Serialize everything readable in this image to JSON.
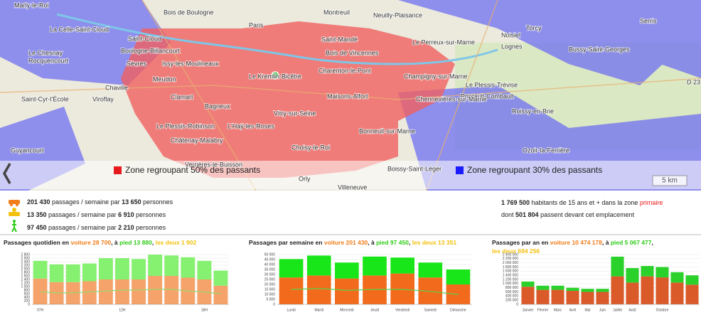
{
  "map": {
    "labels": [
      "Marly-le-Roi",
      "La Celle-Saint-Cloud",
      "Le Chesnay",
      "Rocquencourt",
      "Saint-Cloud",
      "Bois de Boulogne",
      "Boulogne-Billancourt",
      "Paris",
      "Montreuil",
      "Neuilly-Plaisance",
      "Saint-Mandé",
      "Bois de Vincennes",
      "Le Perreux-sur-Marne",
      "Noisiel",
      "Torcy",
      "Sèvres",
      "Issy-les-Moulineaux",
      "Charenton-le-Pont",
      "Lognes",
      "Chaville",
      "Viroflay",
      "Meudon",
      "Le Kremlin-Bicêtre",
      "Champigny-sur-Marne",
      "Bussy-Saint-Georges",
      "Saint-Cyr-l'École",
      "Clamart",
      "Maisons-Alfort",
      "Le Plessis-Trévise",
      "Pontault-Combault",
      "Bagneux",
      "Vitry-sur-Seine",
      "Chennevières-sur-Marne",
      "Roissy-en-Brie",
      "Le Plessis-Robinson",
      "L'Haÿ-les-Roses",
      "Bonneuil-sur-Marne",
      "Serris",
      "Châtenay-Malabry",
      "Choisy-le-Roi",
      "Ozoir-la-Ferrière",
      "Guyancourt",
      "Verrières-le-Buisson",
      "Orly",
      "Boissy-Saint-Léger",
      "Villeneuve",
      "D 23"
    ],
    "legend": [
      "Zone regroupant 50% des passants",
      "Zone regroupant 30% des passants"
    ],
    "legend_colors": [
      "#e8191c",
      "#1a1aff"
    ],
    "scale": "5 km"
  },
  "stats": {
    "rows": [
      {
        "passages": "201 430",
        "middle": " passages / semaine par ",
        "persons": "13 650",
        "end": " personnes"
      },
      {
        "passages": "13 350",
        "middle": " passages / semaine par ",
        "persons": "6 910",
        "end": " personnes"
      },
      {
        "passages": "97 450",
        "middle": " passages / semaine par ",
        "persons": "2 210",
        "end": " personnes"
      }
    ],
    "population": {
      "number": "1 769 500",
      "text": " habitants de 15 ans et + dans la zone ",
      "zone": "primaire"
    },
    "passing": {
      "start": "dont ",
      "number": "501 804",
      "end": " passent devant cet emplacement"
    }
  },
  "chart_data": [
    {
      "type": "bar",
      "stacked": true,
      "title_lines": [
        [
          {
            "text": "Passages quotidien en ",
            "color": "#222"
          },
          {
            "text": "voiture 28 700",
            "color": "#f07d1a"
          },
          {
            "text": ", à ",
            "color": "#222"
          },
          {
            "text": "pied 13 880",
            "color": "#2ecc18"
          },
          {
            "text": ", ",
            "color": "#222"
          },
          {
            "text": "les deux 1 902",
            "color": "#f2c10f"
          }
        ]
      ],
      "categories": [
        "07H",
        null,
        null,
        null,
        null,
        "12H",
        null,
        null,
        null,
        null,
        "18H",
        null
      ],
      "series": [
        {
          "color": "#f5a36a",
          "values": [
            1450,
            1250,
            1250,
            1300,
            1400,
            1400,
            1400,
            1600,
            1600,
            1500,
            1400,
            1050
          ]
        },
        {
          "color": "#86f070",
          "values": [
            1000,
            1000,
            1000,
            1000,
            1200,
            1200,
            1150,
            1200,
            1150,
            1150,
            1050,
            850
          ]
        },
        {
          "type": "line",
          "color": "#9bd86b",
          "values": [
            700,
            650,
            650,
            700,
            750,
            800,
            800,
            850,
            850,
            750,
            700,
            600
          ]
        }
      ],
      "ylim": [
        0,
        2800
      ],
      "yticks": [
        0,
        {
          "value": 200,
          "label": "200"
        },
        400,
        600,
        800,
        {
          "value": 1000,
          "label": "1 000"
        },
        {
          "value": 1200,
          "label": "1 200"
        },
        {
          "value": 1400,
          "label": "1 400"
        },
        {
          "value": 1600,
          "label": "1 600"
        },
        {
          "value": 1800,
          "label": "1 800"
        },
        {
          "value": 2000,
          "label": "2 000"
        },
        {
          "value": 2200,
          "label": "2 200"
        },
        {
          "value": 2400,
          "label": "2 400"
        },
        {
          "value": 2600,
          "label": "2 600"
        },
        {
          "value": 2800,
          "label": "2 800"
        }
      ],
      "grid": true
    },
    {
      "type": "bar",
      "stacked": true,
      "title_lines": [
        [
          {
            "text": "Passages par semaine  en ",
            "color": "#222"
          },
          {
            "text": "voiture 201 430",
            "color": "#f07d1a"
          },
          {
            "text": ", à ",
            "color": "#222"
          },
          {
            "text": "pied 97 450",
            "color": "#2ecc18"
          },
          {
            "text": ", ",
            "color": "#222"
          },
          {
            "text": "les deux 13 351",
            "color": "#f2c10f"
          }
        ]
      ],
      "categories": [
        "Lundi",
        "Mardi",
        "Mercredi",
        "Jeudi",
        "Vendredi",
        "Samedi",
        "Dimanche"
      ],
      "series": [
        {
          "color": "#f26b1d",
          "values": [
            27000,
            29000,
            26000,
            29000,
            31000,
            27000,
            20000
          ]
        },
        {
          "color": "#19e619",
          "values": [
            18500,
            20000,
            16000,
            19000,
            16000,
            15000,
            15000
          ]
        },
        {
          "type": "line",
          "color": "#5ad14a",
          "values": [
            15000,
            16000,
            14000,
            15000,
            15000,
            13000,
            10000
          ]
        }
      ],
      "ylim": [
        0,
        50000
      ],
      "yticks": [
        0,
        {
          "value": 5000,
          "label": "5 000"
        },
        {
          "value": 10000,
          "label": "10 000"
        },
        {
          "value": 15000,
          "label": "15 000"
        },
        {
          "value": 20000,
          "label": "20 000"
        },
        {
          "value": 25000,
          "label": "25 000"
        },
        {
          "value": 30000,
          "label": "30 000"
        },
        {
          "value": 35000,
          "label": "35 000"
        },
        {
          "value": 40000,
          "label": "40 000"
        },
        {
          "value": 45000,
          "label": "45 000"
        },
        {
          "value": 50000,
          "label": "50 000"
        }
      ],
      "grid": true
    },
    {
      "type": "bar",
      "stacked": true,
      "title_lines": [
        [
          {
            "text": "Passages par an  en ",
            "color": "#222"
          },
          {
            "text": "voiture 10 474 178",
            "color": "#f07d1a"
          },
          {
            "text": ", à ",
            "color": "#222"
          },
          {
            "text": "pied 5 067 477",
            "color": "#2ecc18"
          },
          {
            "text": ",",
            "color": "#222"
          }
        ],
        [
          {
            "text": "les deux 694 256",
            "color": "#f2c10f"
          }
        ]
      ],
      "categories": [
        "Janvier",
        "Février",
        "Mars",
        "Avril",
        "Mai",
        "Juin",
        "Juillet",
        "Août",
        null,
        "Octobre",
        null,
        null
      ],
      "series": [
        {
          "color": "#db5a2a",
          "values": [
            850000,
            700000,
            700000,
            650000,
            600000,
            600000,
            1350000,
            1050000,
            1350000,
            1300000,
            1050000,
            950000
          ]
        },
        {
          "color": "#2bd12b",
          "values": [
            250000,
            200000,
            200000,
            150000,
            150000,
            150000,
            950000,
            700000,
            500000,
            500000,
            500000,
            450000
          ]
        }
      ],
      "ylim": [
        0,
        2400000
      ],
      "yticks": [
        0,
        {
          "value": 200000,
          "label": "200 000"
        },
        {
          "value": 400000,
          "label": "400 000"
        },
        {
          "value": 600000,
          "label": "600 000"
        },
        {
          "value": 800000,
          "label": "800 000"
        },
        {
          "value": 1000000,
          "label": "1 000 000"
        },
        {
          "value": 1200000,
          "label": "1 200 000"
        },
        {
          "value": 1400000,
          "label": "1 400 000"
        },
        {
          "value": 1600000,
          "label": "1 600 000"
        },
        {
          "value": 1800000,
          "label": "1 800 000"
        },
        {
          "value": 2000000,
          "label": "2 000 000"
        },
        {
          "value": 2200000,
          "label": "2 200 000"
        },
        {
          "value": 2400000,
          "label": "2 400 000"
        }
      ],
      "grid": true
    }
  ]
}
